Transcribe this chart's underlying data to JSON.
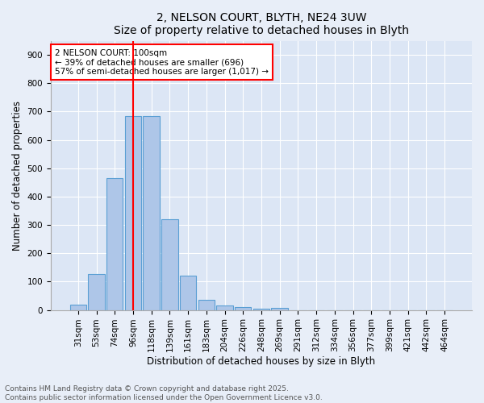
{
  "title1": "2, NELSON COURT, BLYTH, NE24 3UW",
  "title2": "Size of property relative to detached houses in Blyth",
  "xlabel": "Distribution of detached houses by size in Blyth",
  "ylabel": "Number of detached properties",
  "categories": [
    "31sqm",
    "53sqm",
    "74sqm",
    "96sqm",
    "118sqm",
    "139sqm",
    "161sqm",
    "183sqm",
    "204sqm",
    "226sqm",
    "248sqm",
    "269sqm",
    "291sqm",
    "312sqm",
    "334sqm",
    "356sqm",
    "377sqm",
    "399sqm",
    "421sqm",
    "442sqm",
    "464sqm"
  ],
  "values": [
    18,
    128,
    465,
    685,
    685,
    320,
    120,
    35,
    15,
    10,
    5,
    8,
    0,
    0,
    0,
    0,
    0,
    0,
    0,
    0,
    0
  ],
  "bar_color": "#aec6e8",
  "bar_edge_color": "#5a9fd4",
  "vline_x": 3,
  "vline_color": "red",
  "annotation_text": "2 NELSON COURT: 100sqm\n← 39% of detached houses are smaller (696)\n57% of semi-detached houses are larger (1,017) →",
  "ylim": [
    0,
    950
  ],
  "yticks": [
    0,
    100,
    200,
    300,
    400,
    500,
    600,
    700,
    800,
    900
  ],
  "bg_color": "#e8eef8",
  "plot_bg_color": "#dce6f5",
  "footer_text": "Contains HM Land Registry data © Crown copyright and database right 2025.\nContains public sector information licensed under the Open Government Licence v3.0.",
  "title_fontsize": 10,
  "label_fontsize": 8.5,
  "tick_fontsize": 7.5,
  "annot_fontsize": 7.5,
  "footer_fontsize": 6.5
}
